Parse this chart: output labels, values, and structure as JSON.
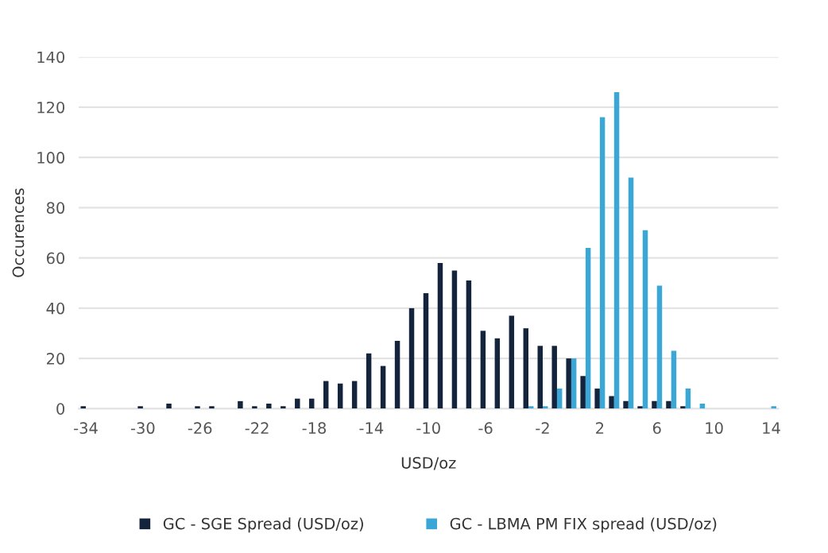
{
  "chart_data": {
    "type": "bar",
    "xlabel": "USD/oz",
    "ylabel": "Occurences",
    "categories": [
      "-34",
      null,
      null,
      null,
      "-30",
      null,
      null,
      null,
      "-26",
      null,
      null,
      null,
      "-22",
      null,
      null,
      null,
      "-18",
      null,
      null,
      null,
      "-14",
      null,
      null,
      null,
      "-10",
      null,
      null,
      null,
      "-6",
      null,
      null,
      null,
      "-2",
      null,
      null,
      null,
      "2",
      null,
      null,
      null,
      "6",
      null,
      null,
      null,
      "10",
      null,
      null,
      null,
      "14"
    ],
    "series": [
      {
        "name": "GC - SGE Spread (USD/oz)",
        "color": "#14243d",
        "values": [
          1,
          null,
          null,
          null,
          1,
          null,
          2,
          null,
          1,
          1,
          null,
          3,
          1,
          2,
          1,
          4,
          4,
          11,
          10,
          11,
          22,
          17,
          27,
          40,
          46,
          58,
          55,
          51,
          31,
          28,
          37,
          32,
          25,
          25,
          20,
          13,
          8,
          5,
          3,
          1,
          3,
          3,
          1,
          null,
          null,
          null,
          null,
          null,
          null
        ]
      },
      {
        "name": "GC - LBMA PM FIX spread (USD/oz)",
        "color": "#3ba7d6",
        "values": [
          null,
          null,
          null,
          null,
          null,
          null,
          null,
          null,
          null,
          null,
          null,
          null,
          null,
          null,
          null,
          null,
          null,
          null,
          null,
          null,
          null,
          null,
          null,
          null,
          null,
          null,
          null,
          null,
          null,
          null,
          null,
          1,
          1,
          8,
          20,
          64,
          116,
          126,
          92,
          71,
          49,
          23,
          8,
          2,
          null,
          null,
          null,
          null,
          1
        ]
      }
    ],
    "ylim": [
      0,
      140
    ],
    "yticks": [
      0,
      20,
      40,
      60,
      80,
      100,
      120,
      140
    ],
    "grid": "y",
    "legend": "bottom"
  }
}
